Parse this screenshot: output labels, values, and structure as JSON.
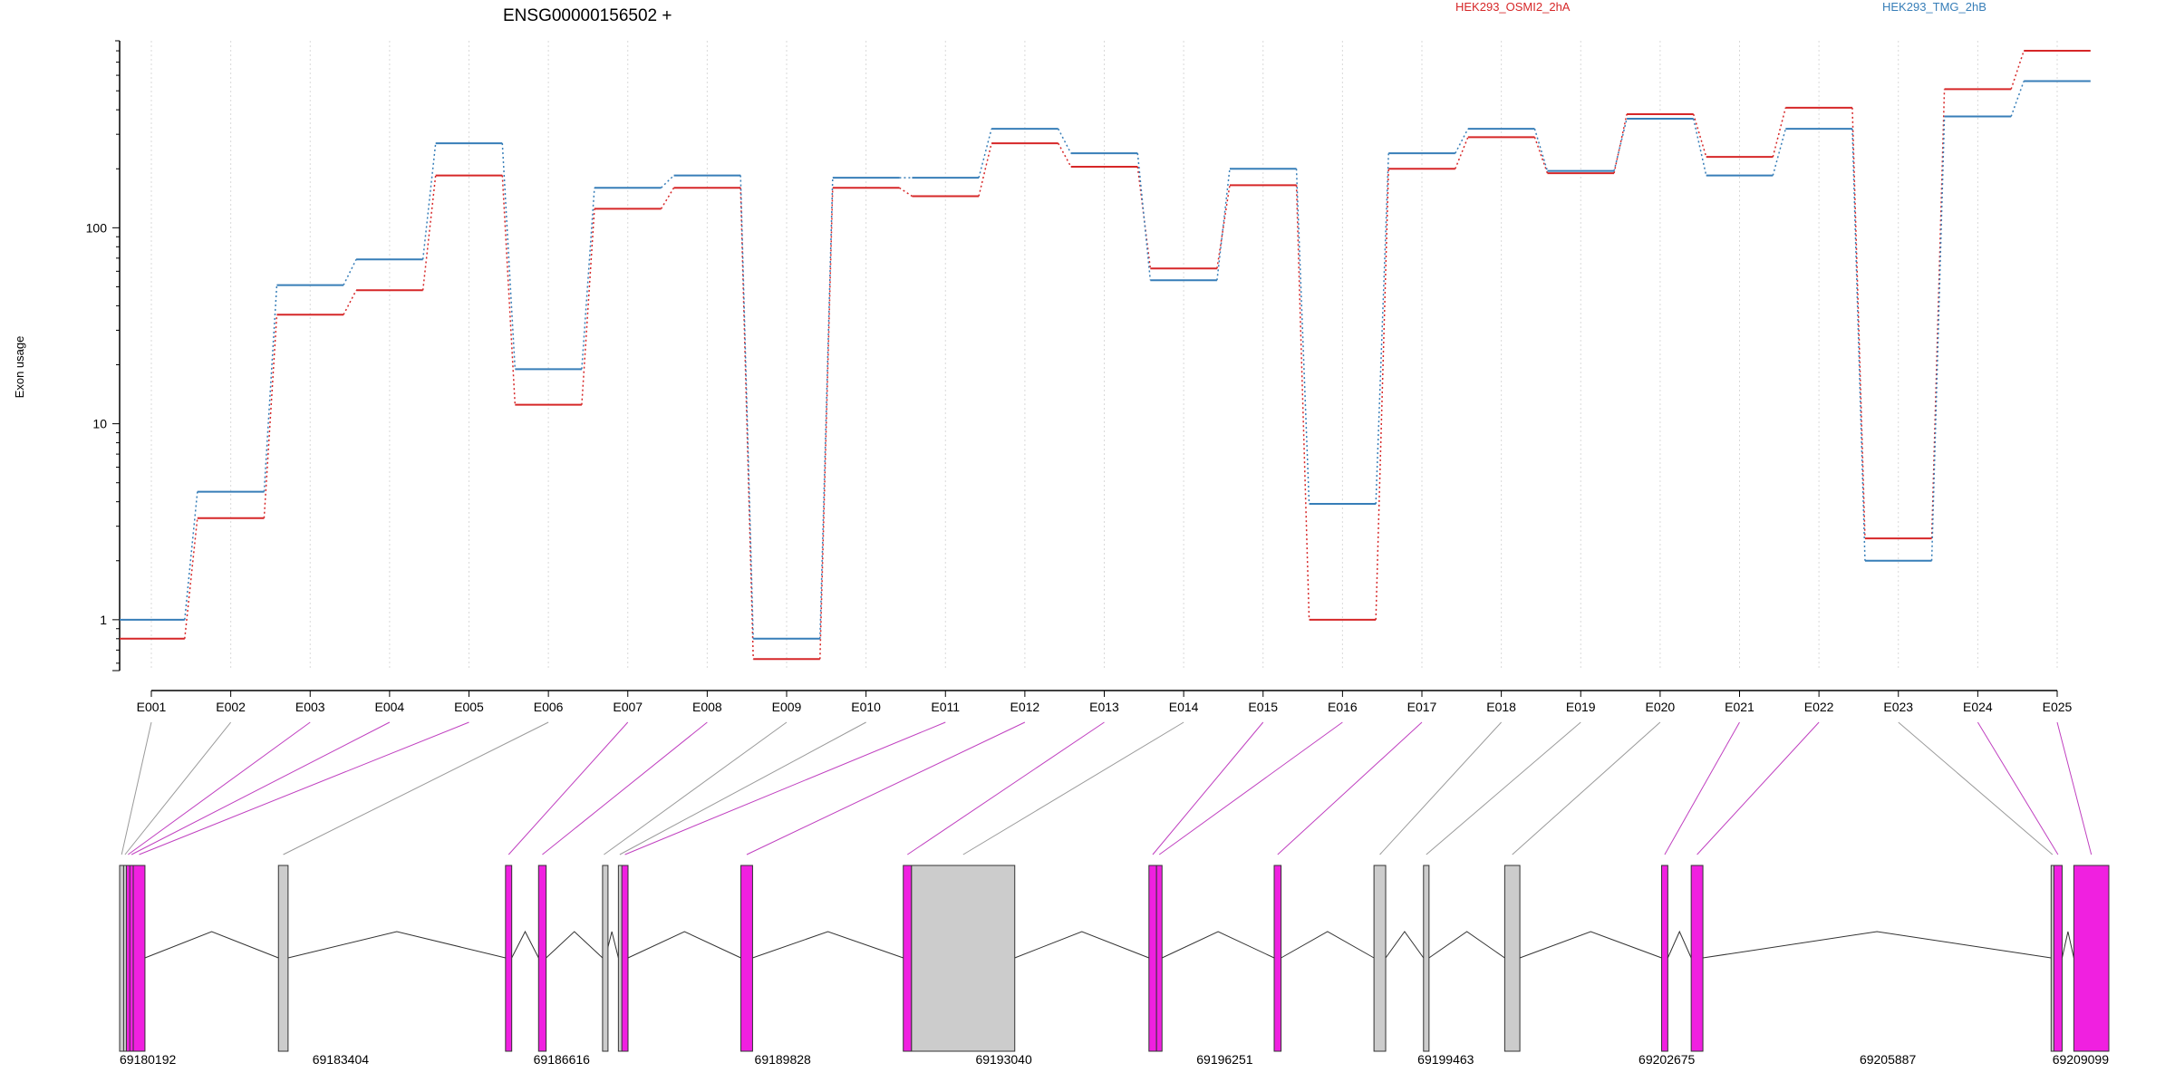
{
  "chart_data": {
    "type": "line",
    "title": "ENSG00000156502 +",
    "ylabel": "Exon usage",
    "y_scale": "log",
    "ylim": [
      0.55,
      900
    ],
    "y_ticks": [
      1,
      10,
      100
    ],
    "y_tick_labels": [
      "1",
      "10",
      "100"
    ],
    "grid": "vertical dotted lines at each exon",
    "categories": [
      "E001",
      "E002",
      "E003",
      "E004",
      "E005",
      "E006",
      "E007",
      "E008",
      "E009",
      "E010",
      "E011",
      "E012",
      "E013",
      "E014",
      "E015",
      "E016",
      "E017",
      "E018",
      "E019",
      "E020",
      "E021",
      "E022",
      "E023",
      "E024",
      "E025"
    ],
    "legend_position": "top-right",
    "series": [
      {
        "name": "HEK293_OSMI2_2hA",
        "color": "#d62728",
        "values": [
          0.8,
          3.3,
          36,
          48,
          185,
          12.5,
          125,
          160,
          0.63,
          160,
          145,
          270,
          205,
          62,
          165,
          1.0,
          200,
          290,
          190,
          380,
          230,
          410,
          2.6,
          510,
          800
        ]
      },
      {
        "name": "HEK293_TMG_2hB",
        "color": "#377eb8",
        "values": [
          1.0,
          4.5,
          51,
          69,
          270,
          19,
          160,
          185,
          0.8,
          180,
          180,
          320,
          240,
          54,
          200,
          3.9,
          240,
          320,
          195,
          360,
          185,
          320,
          2.0,
          370,
          560
        ]
      }
    ],
    "gene_model": {
      "coordinate_labels": [
        "69180192",
        "69183404",
        "69186616",
        "69189828",
        "69193040",
        "69196251",
        "69199463",
        "69202675",
        "69205887",
        "69209099"
      ],
      "coordinate_values": [
        69180192,
        69183404,
        69186616,
        69189828,
        69193040,
        69196251,
        69199463,
        69202675,
        69205887,
        69209099
      ],
      "exons": [
        {
          "id": "E001",
          "start": 69180192,
          "end": 69180250,
          "highlight": false
        },
        {
          "id": "E002",
          "start": 69180250,
          "end": 69180290,
          "highlight": false
        },
        {
          "id": "E003",
          "start": 69180290,
          "end": 69180340,
          "highlight": true
        },
        {
          "id": "E004",
          "start": 69180340,
          "end": 69180390,
          "highlight": true
        },
        {
          "id": "E005",
          "start": 69180390,
          "end": 69180560,
          "highlight": true
        },
        {
          "id": "E006",
          "start": 69182500,
          "end": 69182640,
          "highlight": false
        },
        {
          "id": "E007",
          "start": 69185800,
          "end": 69185890,
          "highlight": true
        },
        {
          "id": "E008",
          "start": 69186280,
          "end": 69186390,
          "highlight": true
        },
        {
          "id": "E009",
          "start": 69187210,
          "end": 69187250,
          "highlight": false
        },
        {
          "id": "E010",
          "start": 69187440,
          "end": 69187480,
          "highlight": false
        },
        {
          "id": "E011",
          "start": 69187490,
          "end": 69187580,
          "highlight": true
        },
        {
          "id": "E012",
          "start": 69189220,
          "end": 69189390,
          "highlight": true
        },
        {
          "id": "E013",
          "start": 69191580,
          "end": 69191700,
          "highlight": true
        },
        {
          "id": "E014",
          "start": 69191700,
          "end": 69193200,
          "highlight": false
        },
        {
          "id": "E015",
          "start": 69195150,
          "end": 69195260,
          "highlight": true
        },
        {
          "id": "E016",
          "start": 69195260,
          "end": 69195340,
          "highlight": true
        },
        {
          "id": "E017",
          "start": 69196970,
          "end": 69197070,
          "highlight": true
        },
        {
          "id": "E018",
          "start": 69198420,
          "end": 69198590,
          "highlight": false
        },
        {
          "id": "E019",
          "start": 69199140,
          "end": 69199220,
          "highlight": false
        },
        {
          "id": "E020",
          "start": 69200320,
          "end": 69200540,
          "highlight": false
        },
        {
          "id": "E021",
          "start": 69202600,
          "end": 69202690,
          "highlight": true
        },
        {
          "id": "E022",
          "start": 69203030,
          "end": 69203200,
          "highlight": true
        },
        {
          "id": "E023",
          "start": 69208260,
          "end": 69208300,
          "highlight": false
        },
        {
          "id": "E024",
          "start": 69208300,
          "end": 69208420,
          "highlight": true
        },
        {
          "id": "E025",
          "start": 69208590,
          "end": 69209099,
          "highlight": true
        }
      ]
    }
  }
}
